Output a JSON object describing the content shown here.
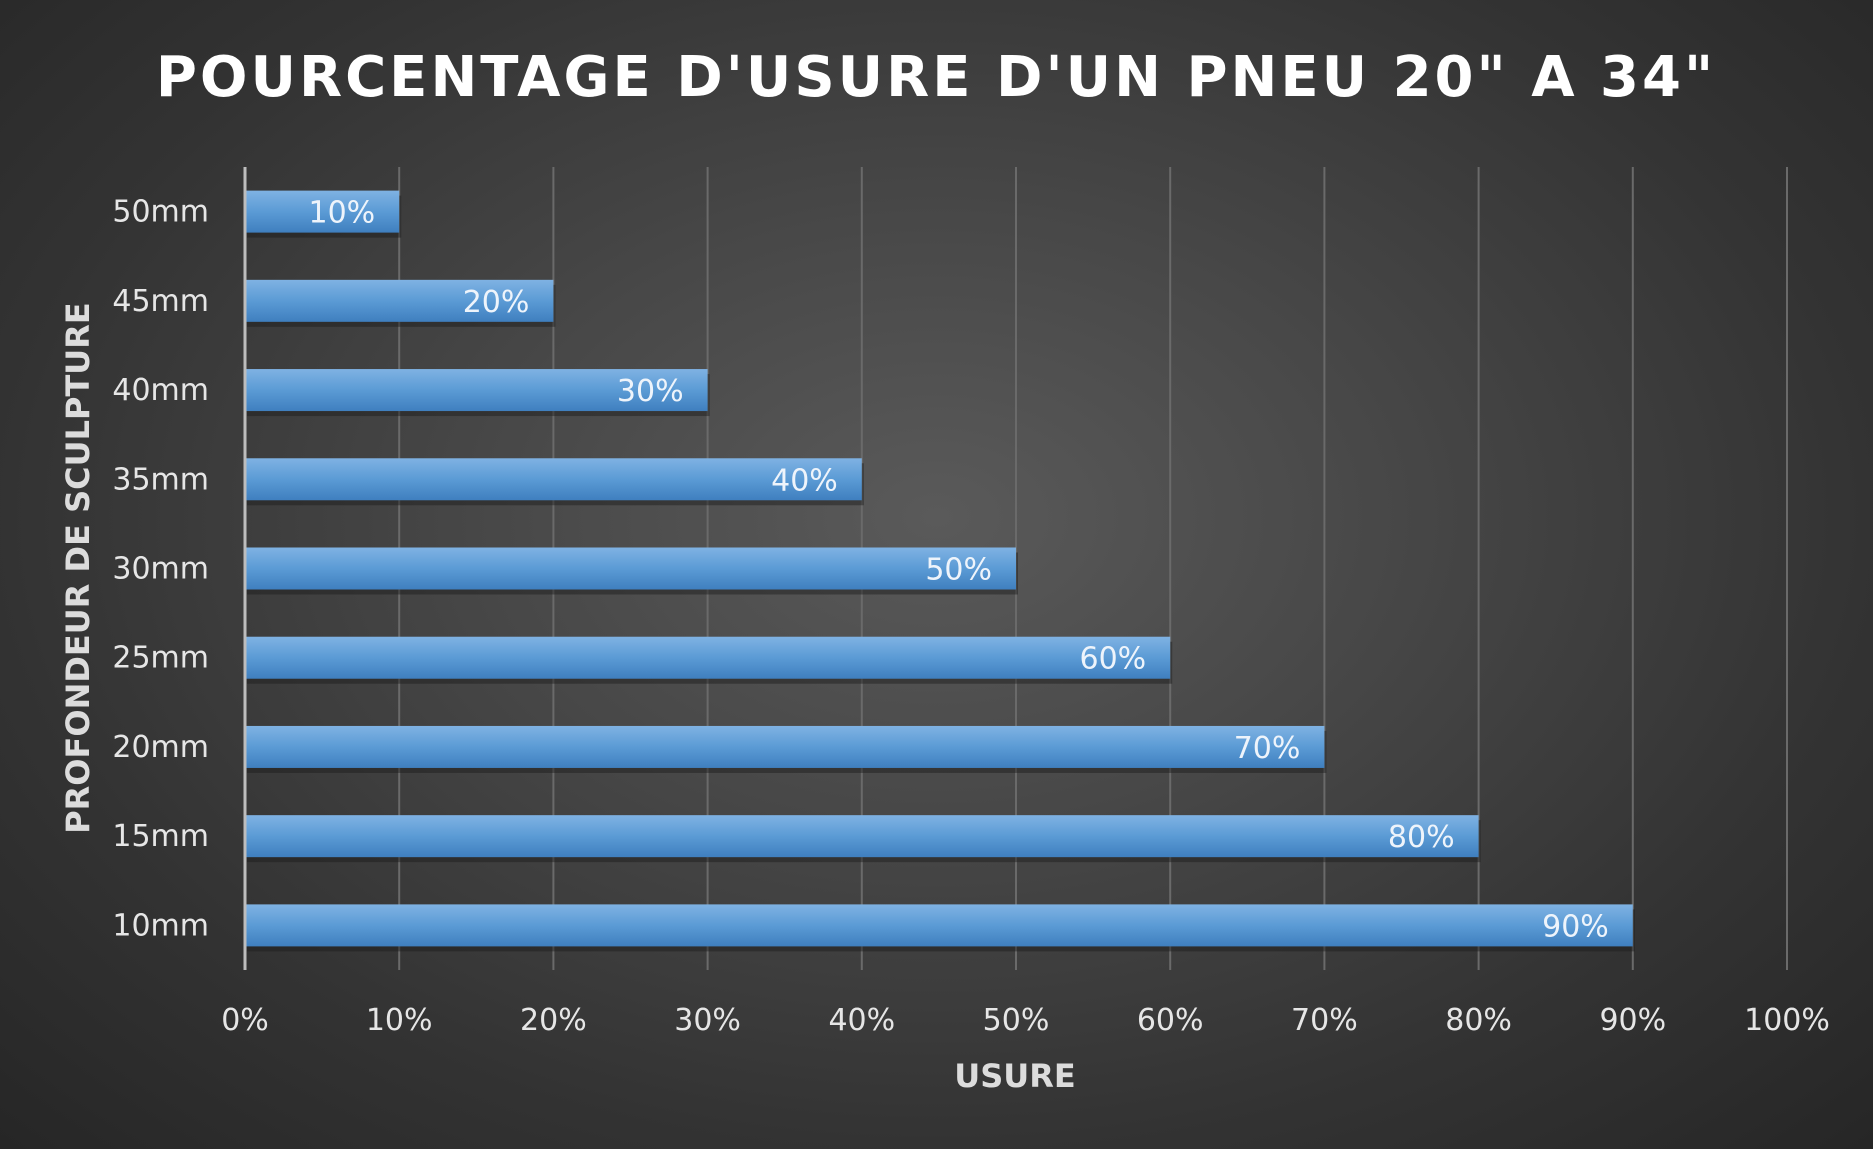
{
  "chart_data": {
    "type": "bar",
    "orientation": "horizontal",
    "title": "POURCENTAGE D'USURE D'UN PNEU 20\" A 34\"",
    "xlabel": "USURE",
    "ylabel": "PROFONDEUR DE SCULPTURE",
    "categories": [
      "50mm",
      "45mm",
      "40mm",
      "35mm",
      "30mm",
      "25mm",
      "20mm",
      "15mm",
      "10mm"
    ],
    "values": [
      10,
      20,
      30,
      40,
      50,
      60,
      70,
      80,
      90
    ],
    "data_labels": [
      "10%",
      "20%",
      "30%",
      "40%",
      "50%",
      "60%",
      "70%",
      "80%",
      "90%"
    ],
    "xlim": [
      0,
      100
    ],
    "x_ticks": [
      "0%",
      "10%",
      "20%",
      "30%",
      "40%",
      "50%",
      "60%",
      "70%",
      "80%",
      "90%",
      "100%"
    ],
    "grid": true,
    "legend": "none",
    "colors": {
      "bar": "#5b9bd5",
      "background": "#404040",
      "gridline": "#6a6a6a",
      "text": "#e6e6e6"
    }
  }
}
